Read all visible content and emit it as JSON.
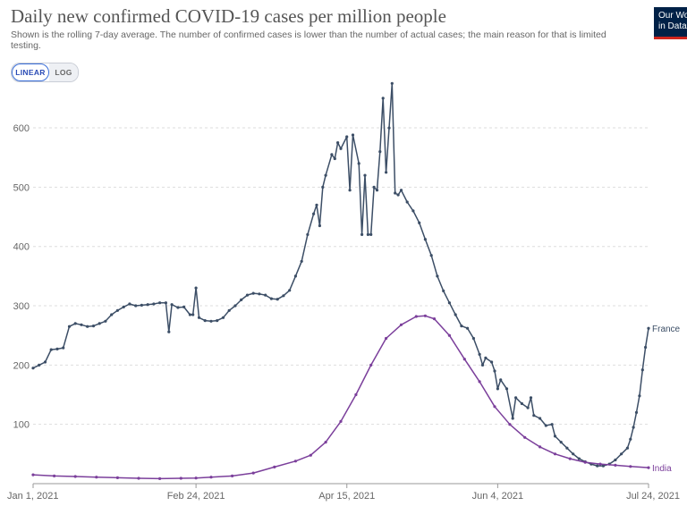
{
  "header": {
    "title": "Daily new confirmed COVID-19 cases per million people",
    "subtitle": "Shown is the rolling 7-day average. The number of confirmed cases is lower than the number of actual cases; the main reason for that is limited testing.",
    "toggle_linear": "LINEAR",
    "toggle_log": "LOG",
    "logo_line1": "Our World",
    "logo_line2": "in Data"
  },
  "chart_data": {
    "type": "line",
    "title": "Daily new confirmed COVID-19 cases per million people",
    "subtitle": "Shown is the rolling 7-day average. The number of confirmed cases is lower than the number of actual cases; the main reason for that is limited testing.",
    "x_start": "2021-01-01",
    "x_end": "2021-07-24",
    "x_ticks": [
      {
        "date": "2021-01-01",
        "label": "Jan 1, 2021"
      },
      {
        "date": "2021-02-24",
        "label": "Feb 24, 2021"
      },
      {
        "date": "2021-04-15",
        "label": "Apr 15, 2021"
      },
      {
        "date": "2021-06-04",
        "label": "Jun 4, 2021"
      },
      {
        "date": "2021-07-24",
        "label": "Jul 24, 2021"
      }
    ],
    "y_ticks": [
      100,
      200,
      300,
      400,
      500,
      600
    ],
    "ylim": [
      0,
      680
    ],
    "grid": true,
    "series": [
      {
        "name": "France",
        "color": "#3c4e66",
        "points": [
          [
            "2021-01-01",
            195
          ],
          [
            "2021-01-03",
            200
          ],
          [
            "2021-01-05",
            205
          ],
          [
            "2021-01-07",
            226
          ],
          [
            "2021-01-09",
            227
          ],
          [
            "2021-01-11",
            229
          ],
          [
            "2021-01-13",
            265
          ],
          [
            "2021-01-15",
            270
          ],
          [
            "2021-01-17",
            268
          ],
          [
            "2021-01-19",
            265
          ],
          [
            "2021-01-21",
            266
          ],
          [
            "2021-01-23",
            270
          ],
          [
            "2021-01-25",
            274
          ],
          [
            "2021-01-27",
            285
          ],
          [
            "2021-01-29",
            292
          ],
          [
            "2021-01-31",
            298
          ],
          [
            "2021-02-02",
            303
          ],
          [
            "2021-02-04",
            300
          ],
          [
            "2021-02-06",
            301
          ],
          [
            "2021-02-08",
            302
          ],
          [
            "2021-02-10",
            303
          ],
          [
            "2021-02-12",
            305
          ],
          [
            "2021-02-14",
            305
          ],
          [
            "2021-02-15",
            256
          ],
          [
            "2021-02-16",
            302
          ],
          [
            "2021-02-18",
            297
          ],
          [
            "2021-02-20",
            298
          ],
          [
            "2021-02-22",
            285
          ],
          [
            "2021-02-23",
            285
          ],
          [
            "2021-02-24",
            330
          ],
          [
            "2021-02-25",
            280
          ],
          [
            "2021-02-27",
            275
          ],
          [
            "2021-03-01",
            274
          ],
          [
            "2021-03-03",
            275
          ],
          [
            "2021-03-05",
            280
          ],
          [
            "2021-03-07",
            292
          ],
          [
            "2021-03-09",
            300
          ],
          [
            "2021-03-11",
            310
          ],
          [
            "2021-03-13",
            318
          ],
          [
            "2021-03-15",
            321
          ],
          [
            "2021-03-17",
            320
          ],
          [
            "2021-03-19",
            318
          ],
          [
            "2021-03-21",
            312
          ],
          [
            "2021-03-23",
            311
          ],
          [
            "2021-03-25",
            317
          ],
          [
            "2021-03-27",
            326
          ],
          [
            "2021-03-29",
            350
          ],
          [
            "2021-03-31",
            375
          ],
          [
            "2021-04-02",
            420
          ],
          [
            "2021-04-04",
            455
          ],
          [
            "2021-04-05",
            470
          ],
          [
            "2021-04-06",
            435
          ],
          [
            "2021-04-07",
            500
          ],
          [
            "2021-04-08",
            520
          ],
          [
            "2021-04-10",
            555
          ],
          [
            "2021-04-11",
            548
          ],
          [
            "2021-04-12",
            575
          ],
          [
            "2021-04-13",
            565
          ],
          [
            "2021-04-15",
            585
          ],
          [
            "2021-04-16",
            495
          ],
          [
            "2021-04-17",
            588
          ],
          [
            "2021-04-19",
            540
          ],
          [
            "2021-04-20",
            420
          ],
          [
            "2021-04-21",
            520
          ],
          [
            "2021-04-22",
            420
          ],
          [
            "2021-04-23",
            420
          ],
          [
            "2021-04-24",
            500
          ],
          [
            "2021-04-25",
            495
          ],
          [
            "2021-04-26",
            560
          ],
          [
            "2021-04-27",
            650
          ],
          [
            "2021-04-28",
            525
          ],
          [
            "2021-04-29",
            600
          ],
          [
            "2021-04-30",
            675
          ],
          [
            "2021-05-01",
            490
          ],
          [
            "2021-05-02",
            487
          ],
          [
            "2021-05-03",
            495
          ],
          [
            "2021-05-05",
            475
          ],
          [
            "2021-05-07",
            460
          ],
          [
            "2021-05-09",
            440
          ],
          [
            "2021-05-11",
            412
          ],
          [
            "2021-05-13",
            385
          ],
          [
            "2021-05-15",
            350
          ],
          [
            "2021-05-17",
            325
          ],
          [
            "2021-05-19",
            305
          ],
          [
            "2021-05-21",
            285
          ],
          [
            "2021-05-23",
            266
          ],
          [
            "2021-05-25",
            262
          ],
          [
            "2021-05-27",
            245
          ],
          [
            "2021-05-29",
            218
          ],
          [
            "2021-05-30",
            200
          ],
          [
            "2021-05-31",
            212
          ],
          [
            "2021-06-02",
            205
          ],
          [
            "2021-06-03",
            190
          ],
          [
            "2021-06-04",
            160
          ],
          [
            "2021-06-05",
            175
          ],
          [
            "2021-06-07",
            160
          ],
          [
            "2021-06-09",
            110
          ],
          [
            "2021-06-10",
            145
          ],
          [
            "2021-06-12",
            135
          ],
          [
            "2021-06-14",
            128
          ],
          [
            "2021-06-15",
            145
          ],
          [
            "2021-06-16",
            115
          ],
          [
            "2021-06-18",
            110
          ],
          [
            "2021-06-20",
            98
          ],
          [
            "2021-06-22",
            100
          ],
          [
            "2021-06-23",
            80
          ],
          [
            "2021-06-25",
            70
          ],
          [
            "2021-06-27",
            60
          ],
          [
            "2021-06-29",
            50
          ],
          [
            "2021-07-01",
            42
          ],
          [
            "2021-07-03",
            37
          ],
          [
            "2021-07-05",
            33
          ],
          [
            "2021-07-07",
            30
          ],
          [
            "2021-07-09",
            30
          ],
          [
            "2021-07-11",
            33
          ],
          [
            "2021-07-13",
            40
          ],
          [
            "2021-07-15",
            50
          ],
          [
            "2021-07-17",
            60
          ],
          [
            "2021-07-18",
            75
          ],
          [
            "2021-07-19",
            95
          ],
          [
            "2021-07-20",
            120
          ],
          [
            "2021-07-21",
            148
          ],
          [
            "2021-07-22",
            192
          ],
          [
            "2021-07-23",
            230
          ],
          [
            "2021-07-24",
            262
          ]
        ]
      },
      {
        "name": "India",
        "color": "#7b3f9b",
        "points": [
          [
            "2021-01-01",
            15
          ],
          [
            "2021-01-08",
            13
          ],
          [
            "2021-01-15",
            12
          ],
          [
            "2021-01-22",
            11
          ],
          [
            "2021-01-29",
            10
          ],
          [
            "2021-02-05",
            9
          ],
          [
            "2021-02-12",
            8.5
          ],
          [
            "2021-02-19",
            9
          ],
          [
            "2021-02-24",
            9.5
          ],
          [
            "2021-03-01",
            11
          ],
          [
            "2021-03-08",
            13
          ],
          [
            "2021-03-15",
            18
          ],
          [
            "2021-03-22",
            28
          ],
          [
            "2021-03-29",
            38
          ],
          [
            "2021-04-03",
            48
          ],
          [
            "2021-04-08",
            70
          ],
          [
            "2021-04-13",
            105
          ],
          [
            "2021-04-18",
            150
          ],
          [
            "2021-04-23",
            200
          ],
          [
            "2021-04-28",
            245
          ],
          [
            "2021-05-03",
            268
          ],
          [
            "2021-05-08",
            282
          ],
          [
            "2021-05-11",
            283
          ],
          [
            "2021-05-14",
            278
          ],
          [
            "2021-05-19",
            250
          ],
          [
            "2021-05-24",
            210
          ],
          [
            "2021-05-29",
            172
          ],
          [
            "2021-06-03",
            130
          ],
          [
            "2021-06-08",
            100
          ],
          [
            "2021-06-13",
            78
          ],
          [
            "2021-06-18",
            62
          ],
          [
            "2021-06-23",
            50
          ],
          [
            "2021-06-28",
            42
          ],
          [
            "2021-07-03",
            36
          ],
          [
            "2021-07-08",
            33
          ],
          [
            "2021-07-13",
            31
          ],
          [
            "2021-07-18",
            29
          ],
          [
            "2021-07-24",
            27
          ]
        ]
      }
    ]
  }
}
